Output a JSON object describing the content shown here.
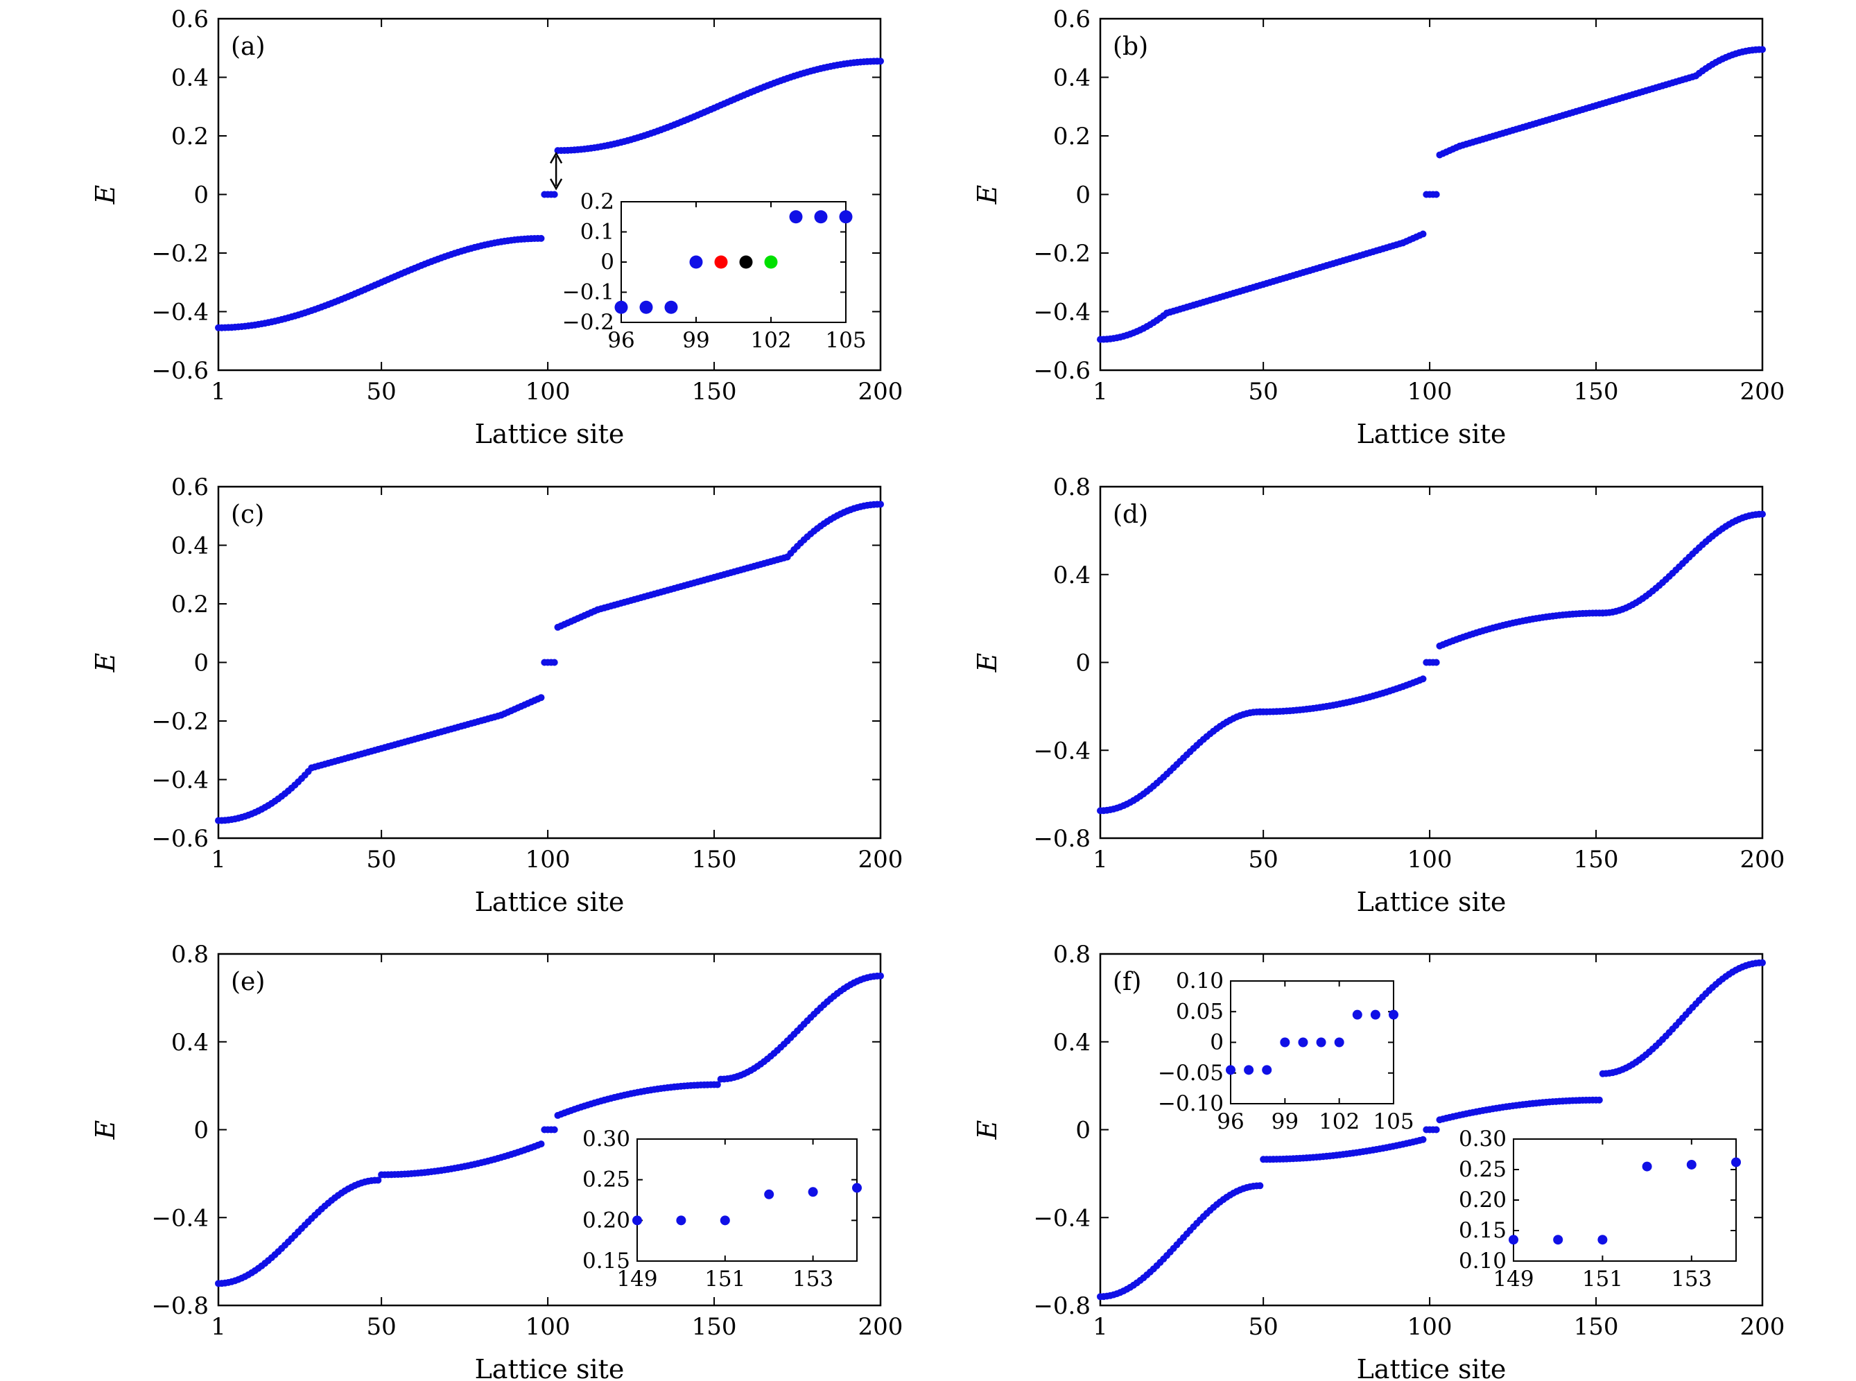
{
  "figure": {
    "colors": {
      "marker": "#1010e6",
      "frame": "#000000",
      "red": "#ff0000",
      "black": "#000000",
      "green": "#00e000"
    }
  },
  "chart_data": [
    {
      "id": "a",
      "type": "scatter",
      "tag": "(a)",
      "xlabel": "Lattice site",
      "ylabel": "E",
      "xlim": [
        1,
        200
      ],
      "ylim": [
        -0.6,
        0.6
      ],
      "xticks": [
        1,
        50,
        100,
        150,
        200
      ],
      "xtick_labels": [
        "1",
        "50",
        "100",
        "150",
        "200"
      ],
      "yticks": [
        -0.6,
        -0.4,
        -0.2,
        0,
        0.2,
        0.4,
        0.6
      ],
      "ytick_labels": [
        "−0.6",
        "−0.4",
        "−0.2",
        "0",
        "0.2",
        "0.4",
        "0.6"
      ],
      "segments": [
        {
          "x0": 1,
          "x1": 98,
          "y0": -0.455,
          "y1": -0.15,
          "shape": "cos"
        },
        {
          "x0": 99,
          "x1": 102,
          "y0": 0,
          "y1": 0,
          "shape": "flat"
        },
        {
          "x0": 103,
          "x1": 200,
          "y0": 0.15,
          "y1": 0.455,
          "shape": "cos"
        }
      ],
      "annotations": [
        {
          "type": "double-arrow",
          "x": 102.5,
          "y0": 0.02,
          "y1": 0.14
        }
      ],
      "inset": {
        "xlim": [
          96,
          105
        ],
        "ylim": [
          -0.2,
          0.2
        ],
        "xticks": [
          96,
          99,
          102,
          105
        ],
        "xtick_labels": [
          "96",
          "99",
          "102",
          "105"
        ],
        "yticks": [
          -0.2,
          -0.1,
          0,
          0.1,
          0.2
        ],
        "ytick_labels": [
          "−0.2",
          "−0.1",
          "0",
          "0.1",
          "0.2"
        ],
        "points": [
          {
            "x": 96,
            "y": -0.15
          },
          {
            "x": 97,
            "y": -0.15
          },
          {
            "x": 98,
            "y": -0.15
          },
          {
            "x": 99,
            "y": 0
          },
          {
            "x": 100,
            "y": 0,
            "color": "red"
          },
          {
            "x": 101,
            "y": 0,
            "color": "black"
          },
          {
            "x": 102,
            "y": 0,
            "color": "green"
          },
          {
            "x": 103,
            "y": 0.15
          },
          {
            "x": 104,
            "y": 0.15
          },
          {
            "x": 105,
            "y": 0.15
          }
        ]
      }
    },
    {
      "id": "b",
      "type": "scatter",
      "tag": "(b)",
      "xlabel": "Lattice site",
      "ylabel": "E",
      "xlim": [
        1,
        200
      ],
      "ylim": [
        -0.6,
        0.6
      ],
      "xticks": [
        1,
        50,
        100,
        150,
        200
      ],
      "xtick_labels": [
        "1",
        "50",
        "100",
        "150",
        "200"
      ],
      "yticks": [
        -0.6,
        -0.4,
        -0.2,
        0,
        0.2,
        0.4,
        0.6
      ],
      "ytick_labels": [
        "−0.6",
        "−0.4",
        "−0.2",
        "0",
        "0.2",
        "0.4",
        "0.6"
      ],
      "segments": [
        {
          "x0": 1,
          "x1": 21,
          "y0": -0.495,
          "y1": -0.405,
          "shape": "convex"
        },
        {
          "x0": 21,
          "x1": 92,
          "y0": -0.405,
          "y1": -0.165,
          "shape": "linear"
        },
        {
          "x0": 92,
          "x1": 98,
          "y0": -0.165,
          "y1": -0.135,
          "shape": "linear"
        },
        {
          "x0": 99,
          "x1": 102,
          "y0": 0,
          "y1": 0,
          "shape": "flat"
        },
        {
          "x0": 103,
          "x1": 109,
          "y0": 0.135,
          "y1": 0.165,
          "shape": "linear"
        },
        {
          "x0": 109,
          "x1": 180,
          "y0": 0.165,
          "y1": 0.405,
          "shape": "linear"
        },
        {
          "x0": 180,
          "x1": 200,
          "y0": 0.405,
          "y1": 0.495,
          "shape": "concave"
        }
      ]
    },
    {
      "id": "c",
      "type": "scatter",
      "tag": "(c)",
      "xlabel": "Lattice site",
      "ylabel": "E",
      "xlim": [
        1,
        200
      ],
      "ylim": [
        -0.6,
        0.6
      ],
      "xticks": [
        1,
        50,
        100,
        150,
        200
      ],
      "xtick_labels": [
        "1",
        "50",
        "100",
        "150",
        "200"
      ],
      "yticks": [
        -0.6,
        -0.4,
        -0.2,
        0,
        0.2,
        0.4,
        0.6
      ],
      "ytick_labels": [
        "−0.6",
        "−0.4",
        "−0.2",
        "0",
        "0.2",
        "0.4",
        "0.6"
      ],
      "segments": [
        {
          "x0": 1,
          "x1": 29,
          "y0": -0.54,
          "y1": -0.36,
          "shape": "convex"
        },
        {
          "x0": 29,
          "x1": 86,
          "y0": -0.36,
          "y1": -0.18,
          "shape": "linear"
        },
        {
          "x0": 86,
          "x1": 98,
          "y0": -0.18,
          "y1": -0.12,
          "shape": "linear"
        },
        {
          "x0": 99,
          "x1": 102,
          "y0": 0,
          "y1": 0,
          "shape": "flat"
        },
        {
          "x0": 103,
          "x1": 115,
          "y0": 0.12,
          "y1": 0.18,
          "shape": "linear"
        },
        {
          "x0": 115,
          "x1": 172,
          "y0": 0.18,
          "y1": 0.36,
          "shape": "linear"
        },
        {
          "x0": 172,
          "x1": 200,
          "y0": 0.36,
          "y1": 0.54,
          "shape": "concave"
        }
      ]
    },
    {
      "id": "d",
      "type": "scatter",
      "tag": "(d)",
      "xlabel": "Lattice site",
      "ylabel": "E",
      "xlim": [
        1,
        200
      ],
      "ylim": [
        -0.8,
        0.8
      ],
      "xticks": [
        1,
        50,
        100,
        150,
        200
      ],
      "xtick_labels": [
        "1",
        "50",
        "100",
        "150",
        "200"
      ],
      "yticks": [
        -0.8,
        -0.4,
        0,
        0.4,
        0.8
      ],
      "ytick_labels": [
        "−0.8",
        "−0.4",
        "0",
        "0.4",
        "0.8"
      ],
      "segments": [
        {
          "x0": 1,
          "x1": 49,
          "y0": -0.675,
          "y1": -0.225,
          "shape": "cos"
        },
        {
          "x0": 49,
          "x1": 98,
          "y0": -0.225,
          "y1": -0.075,
          "shape": "convex"
        },
        {
          "x0": 99,
          "x1": 102,
          "y0": 0,
          "y1": 0,
          "shape": "flat"
        },
        {
          "x0": 103,
          "x1": 152,
          "y0": 0.075,
          "y1": 0.225,
          "shape": "concave"
        },
        {
          "x0": 152,
          "x1": 200,
          "y0": 0.225,
          "y1": 0.675,
          "shape": "cos"
        }
      ]
    },
    {
      "id": "e",
      "type": "scatter",
      "tag": "(e)",
      "xlabel": "Lattice site",
      "ylabel": "E",
      "xlim": [
        1,
        200
      ],
      "ylim": [
        -0.8,
        0.8
      ],
      "xticks": [
        1,
        50,
        100,
        150,
        200
      ],
      "xtick_labels": [
        "1",
        "50",
        "100",
        "150",
        "200"
      ],
      "yticks": [
        -0.8,
        -0.4,
        0,
        0.4,
        0.8
      ],
      "ytick_labels": [
        "−0.8",
        "−0.4",
        "0",
        "0.4",
        "0.8"
      ],
      "segments": [
        {
          "x0": 1,
          "x1": 49,
          "y0": -0.7,
          "y1": -0.23,
          "shape": "cos"
        },
        {
          "x0": 50,
          "x1": 98,
          "y0": -0.205,
          "y1": -0.065,
          "shape": "convex"
        },
        {
          "x0": 99,
          "x1": 102,
          "y0": 0,
          "y1": 0,
          "shape": "flat"
        },
        {
          "x0": 103,
          "x1": 151,
          "y0": 0.065,
          "y1": 0.205,
          "shape": "concave"
        },
        {
          "x0": 152,
          "x1": 200,
          "y0": 0.23,
          "y1": 0.7,
          "shape": "cos"
        }
      ],
      "inset": {
        "xlim": [
          149,
          154
        ],
        "ylim": [
          0.15,
          0.3
        ],
        "xticks": [
          149,
          151,
          153
        ],
        "xtick_labels": [
          "149",
          "151",
          "153"
        ],
        "yticks": [
          0.15,
          0.2,
          0.25,
          0.3
        ],
        "ytick_labels": [
          "0.15",
          "0.20",
          "0.25",
          "0.30"
        ],
        "points": [
          {
            "x": 149,
            "y": 0.2
          },
          {
            "x": 150,
            "y": 0.2
          },
          {
            "x": 151,
            "y": 0.2
          },
          {
            "x": 152,
            "y": 0.232
          },
          {
            "x": 153,
            "y": 0.235
          },
          {
            "x": 154,
            "y": 0.24
          }
        ]
      }
    },
    {
      "id": "f",
      "type": "scatter",
      "tag": "(f)",
      "xlabel": "Lattice site",
      "ylabel": "E",
      "xlim": [
        1,
        200
      ],
      "ylim": [
        -0.8,
        0.8
      ],
      "xticks": [
        1,
        50,
        100,
        150,
        200
      ],
      "xtick_labels": [
        "1",
        "50",
        "100",
        "150",
        "200"
      ],
      "yticks": [
        -0.8,
        -0.4,
        0,
        0.4,
        0.8
      ],
      "ytick_labels": [
        "−0.8",
        "−0.4",
        "0",
        "0.4",
        "0.8"
      ],
      "segments": [
        {
          "x0": 1,
          "x1": 49,
          "y0": -0.76,
          "y1": -0.255,
          "shape": "cos"
        },
        {
          "x0": 50,
          "x1": 98,
          "y0": -0.135,
          "y1": -0.045,
          "shape": "convex"
        },
        {
          "x0": 99,
          "x1": 102,
          "y0": 0,
          "y1": 0,
          "shape": "flat"
        },
        {
          "x0": 103,
          "x1": 151,
          "y0": 0.045,
          "y1": 0.135,
          "shape": "concave"
        },
        {
          "x0": 152,
          "x1": 200,
          "y0": 0.255,
          "y1": 0.76,
          "shape": "cos"
        }
      ],
      "inset": {
        "xlim": [
          96,
          105
        ],
        "ylim": [
          -0.1,
          0.1
        ],
        "xticks": [
          96,
          99,
          102,
          105
        ],
        "xtick_labels": [
          "96",
          "99",
          "102",
          "105"
        ],
        "yticks": [
          -0.1,
          -0.05,
          0,
          0.05,
          0.1
        ],
        "ytick_labels": [
          "−0.10",
          "−0.05",
          "0",
          "0.05",
          "0.10"
        ],
        "points": [
          {
            "x": 96,
            "y": -0.045
          },
          {
            "x": 97,
            "y": -0.045
          },
          {
            "x": 98,
            "y": -0.045
          },
          {
            "x": 99,
            "y": 0
          },
          {
            "x": 100,
            "y": 0
          },
          {
            "x": 101,
            "y": 0
          },
          {
            "x": 102,
            "y": 0
          },
          {
            "x": 103,
            "y": 0.045
          },
          {
            "x": 104,
            "y": 0.045
          },
          {
            "x": 105,
            "y": 0.045
          }
        ]
      },
      "inset2": {
        "xlim": [
          149,
          154
        ],
        "ylim": [
          0.1,
          0.3
        ],
        "xticks": [
          149,
          151,
          153
        ],
        "xtick_labels": [
          "149",
          "151",
          "153"
        ],
        "yticks": [
          0.1,
          0.15,
          0.2,
          0.25,
          0.3
        ],
        "ytick_labels": [
          "0.10",
          "0.15",
          "0.20",
          "0.25",
          "0.30"
        ],
        "points": [
          {
            "x": 149,
            "y": 0.135
          },
          {
            "x": 150,
            "y": 0.135
          },
          {
            "x": 151,
            "y": 0.135
          },
          {
            "x": 152,
            "y": 0.255
          },
          {
            "x": 153,
            "y": 0.258
          },
          {
            "x": 154,
            "y": 0.262
          }
        ]
      }
    }
  ]
}
